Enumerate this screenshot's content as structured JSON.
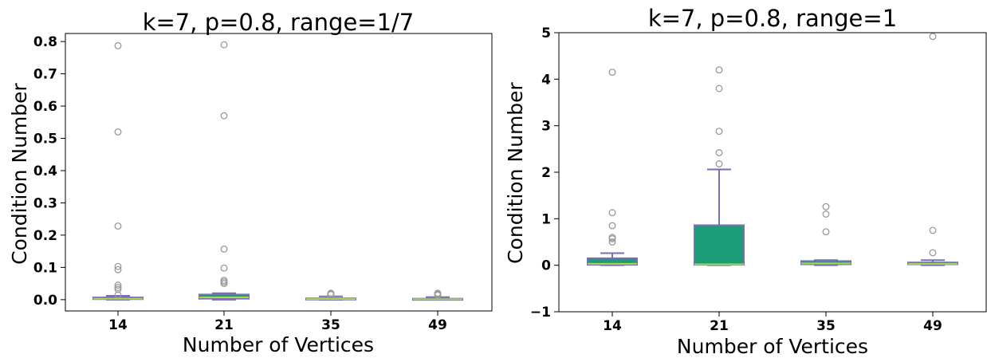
{
  "chart_data": [
    {
      "type": "box",
      "title": "k=7, p=0.8, range=1/7",
      "xlabel": "Number of Vertices",
      "ylabel": "Condition Number",
      "categories": [
        "14",
        "21",
        "35",
        "49"
      ],
      "ylim": [
        -0.035,
        0.825
      ],
      "yticks": [
        0.0,
        0.1,
        0.2,
        0.3,
        0.4,
        0.5,
        0.6,
        0.7,
        0.8
      ],
      "ytick_labels": [
        "0.0",
        "0.1",
        "0.2",
        "0.3",
        "0.4",
        "0.5",
        "0.6",
        "0.7",
        "0.8"
      ],
      "grid": false,
      "boxes": [
        {
          "category": "14",
          "whislo": 0.0,
          "q1": 0.0015,
          "median": 0.003,
          "q3": 0.007,
          "whishi": 0.012,
          "fliers": [
            0.787,
            0.52,
            0.228,
            0.103,
            0.093,
            0.045,
            0.038,
            0.032,
            0.015
          ]
        },
        {
          "category": "21",
          "whislo": 0.0,
          "q1": 0.003,
          "median": 0.007,
          "q3": 0.016,
          "whishi": 0.02,
          "fliers": [
            0.79,
            0.57,
            0.157,
            0.098,
            0.06,
            0.055,
            0.05
          ]
        },
        {
          "category": "35",
          "whislo": 0.0,
          "q1": 0.001,
          "median": 0.002,
          "q3": 0.004,
          "whishi": 0.01,
          "fliers": [
            0.02,
            0.018,
            0.016
          ]
        },
        {
          "category": "49",
          "whislo": 0.0,
          "q1": 0.0005,
          "median": 0.001,
          "q3": 0.003,
          "whishi": 0.008,
          "fliers": [
            0.02,
            0.017,
            0.014
          ]
        }
      ]
    },
    {
      "type": "box",
      "title": "k=7, p=0.8, range=1",
      "xlabel": "Number of Vertices",
      "ylabel": "Condition Number",
      "categories": [
        "14",
        "21",
        "35",
        "49"
      ],
      "ylim": [
        -1,
        5
      ],
      "yticks": [
        -1,
        0,
        1,
        2,
        3,
        4,
        5
      ],
      "ytick_labels": [
        "−1",
        "0",
        "1",
        "2",
        "3",
        "4",
        "5"
      ],
      "grid": false,
      "boxes": [
        {
          "category": "14",
          "whislo": 0.0,
          "q1": 0.01,
          "median": 0.03,
          "q3": 0.15,
          "whishi": 0.26,
          "fliers": [
            4.15,
            1.13,
            0.85,
            0.6,
            0.57,
            0.5
          ]
        },
        {
          "category": "21",
          "whislo": 0.0,
          "q1": 0.01,
          "median": 0.02,
          "q3": 0.86,
          "whishi": 2.06,
          "fliers": [
            4.2,
            3.8,
            2.88,
            2.42,
            2.18
          ]
        },
        {
          "category": "35",
          "whislo": 0.0,
          "q1": 0.02,
          "median": 0.04,
          "q3": 0.09,
          "whishi": 0.11,
          "fliers": [
            1.26,
            1.1,
            0.72
          ]
        },
        {
          "category": "49",
          "whislo": 0.0,
          "q1": 0.02,
          "median": 0.03,
          "q3": 0.06,
          "whishi": 0.11,
          "fliers": [
            4.92,
            0.75,
            0.27
          ]
        }
      ]
    }
  ],
  "colors": {
    "box_fill": "#1b9e77",
    "box_edge": "#7570b3",
    "median": "#a6d854",
    "flier": "#999999",
    "axis": "#000000"
  }
}
